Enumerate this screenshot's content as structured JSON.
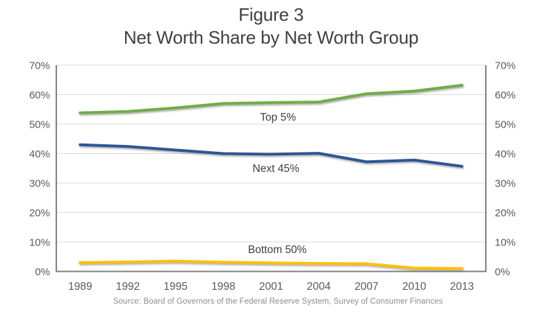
{
  "figure": {
    "title_line1": "Figure 3",
    "title_line2": "Net Worth Share by Net Worth Group",
    "source": "Source: Board of Governors of the Federal Reserve System, Survey of Consumer Finances"
  },
  "chart_data": {
    "type": "line",
    "title": "Figure 3",
    "subtitle": "Net Worth Share by Net Worth Group",
    "categories": [
      "1989",
      "1992",
      "1995",
      "1998",
      "2001",
      "2004",
      "2007",
      "2010",
      "2013"
    ],
    "series": [
      {
        "name": "Top 5%",
        "color": "#70AD47",
        "values": [
          53.8,
          54.3,
          55.5,
          57.0,
          57.3,
          57.5,
          60.3,
          61.2,
          63.2
        ]
      },
      {
        "name": "Next 45%",
        "color": "#2E5597",
        "values": [
          43.0,
          42.4,
          41.2,
          40.0,
          39.8,
          40.1,
          37.2,
          37.8,
          35.7
        ]
      },
      {
        "name": "Bottom 50%",
        "color": "#FFC000",
        "values": [
          3.0,
          3.2,
          3.5,
          3.1,
          2.9,
          2.7,
          2.6,
          1.1,
          1.0
        ]
      }
    ],
    "ylim": [
      0,
      70
    ],
    "y_step": 10,
    "yticks": [
      "0%",
      "10%",
      "20%",
      "30%",
      "40%",
      "50%",
      "60%",
      "70%"
    ],
    "y_axis_sides": "both",
    "grid": true,
    "legend": "inline-labels",
    "xlabel": "",
    "ylabel": ""
  },
  "colors": {
    "title_text": "#404040",
    "axis_text": "#595959",
    "gridline": "#d9d9d9",
    "axis_line": "#7f7f7f",
    "source_text": "#8c8c8c",
    "top5_line": "#70AD47",
    "next45_line": "#2E5597",
    "bottom50_line": "#FFC000"
  }
}
